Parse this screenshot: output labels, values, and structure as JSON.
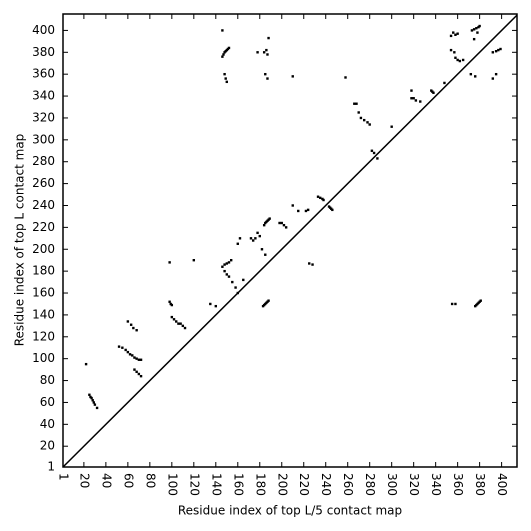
{
  "chart_data": {
    "type": "scatter",
    "xlabel": "Residue index of top L/5 contact map",
    "ylabel": "Residue index of top L contact map",
    "color": "#000000",
    "diagonal": true,
    "xlim": [
      1,
      414
    ],
    "ylim": [
      1,
      415
    ],
    "xticks": [
      1,
      20,
      40,
      60,
      80,
      100,
      120,
      140,
      160,
      180,
      200,
      220,
      240,
      260,
      280,
      300,
      320,
      340,
      360,
      380,
      400
    ],
    "yticks": [
      1,
      20,
      40,
      60,
      80,
      100,
      120,
      140,
      160,
      180,
      200,
      220,
      240,
      260,
      280,
      300,
      320,
      340,
      360,
      380,
      400
    ],
    "x": [
      22,
      25,
      26,
      27,
      28,
      29,
      30,
      32,
      52,
      55,
      58,
      60,
      62,
      64,
      66,
      68,
      70,
      72,
      60,
      63,
      65,
      68,
      66,
      68,
      70,
      72,
      98,
      99,
      100,
      100,
      102,
      104,
      106,
      108,
      110,
      112,
      98,
      120,
      135,
      140,
      146,
      148,
      150,
      152,
      154,
      148,
      150,
      152,
      155,
      158,
      160,
      160,
      162,
      165,
      172,
      174,
      176,
      178,
      180,
      184,
      185,
      186,
      187,
      188,
      189,
      182,
      185,
      198,
      200,
      202,
      204,
      210,
      215,
      222,
      146,
      147,
      148,
      149,
      150,
      151,
      152,
      148,
      149,
      150,
      146,
      178,
      184,
      186,
      187,
      188,
      185,
      187,
      210,
      258,
      266,
      268,
      270,
      272,
      275,
      278,
      280,
      282,
      284,
      287,
      300,
      318,
      318,
      320,
      322,
      326,
      336,
      337,
      338,
      348,
      354,
      356,
      358,
      360,
      354,
      357,
      358,
      360,
      362,
      365,
      373,
      375,
      377,
      379,
      380,
      378,
      375,
      372,
      376,
      392,
      395,
      397,
      399,
      395,
      392,
      183,
      184,
      185,
      186,
      187,
      188,
      225,
      228,
      233,
      235,
      237,
      238,
      243,
      244,
      245,
      246,
      224,
      355,
      358,
      376,
      377,
      378,
      379,
      380,
      381
    ],
    "y": [
      95,
      67,
      65,
      64,
      62,
      60,
      58,
      55,
      111,
      110,
      108,
      106,
      104,
      103,
      101,
      100,
      99,
      99,
      134,
      131,
      128,
      126,
      90,
      88,
      86,
      84,
      152,
      150,
      149,
      138,
      136,
      134,
      132,
      132,
      130,
      128,
      188,
      190,
      150,
      148,
      184,
      186,
      187,
      188,
      190,
      180,
      177,
      175,
      170,
      165,
      160,
      205,
      210,
      172,
      210,
      208,
      210,
      215,
      212,
      222,
      224,
      225,
      226,
      227,
      228,
      200,
      195,
      224,
      224,
      222,
      220,
      240,
      235,
      235,
      376,
      378,
      380,
      381,
      382,
      383,
      384,
      360,
      356,
      353,
      400,
      380,
      380,
      382,
      378,
      393,
      360,
      356,
      358,
      357,
      333,
      333,
      325,
      320,
      318,
      316,
      314,
      290,
      288,
      283,
      312,
      345,
      338,
      338,
      336,
      335,
      345,
      344,
      343,
      352,
      395,
      398,
      396,
      397,
      382,
      380,
      375,
      373,
      372,
      373,
      400,
      401,
      402,
      403,
      404,
      398,
      392,
      360,
      358,
      380,
      381,
      382,
      383,
      360,
      356,
      148,
      149,
      150,
      151,
      152,
      153,
      187,
      186,
      248,
      247,
      246,
      245,
      239,
      238,
      237,
      236,
      236,
      150,
      150,
      148,
      149,
      150,
      151,
      152,
      153
    ]
  }
}
